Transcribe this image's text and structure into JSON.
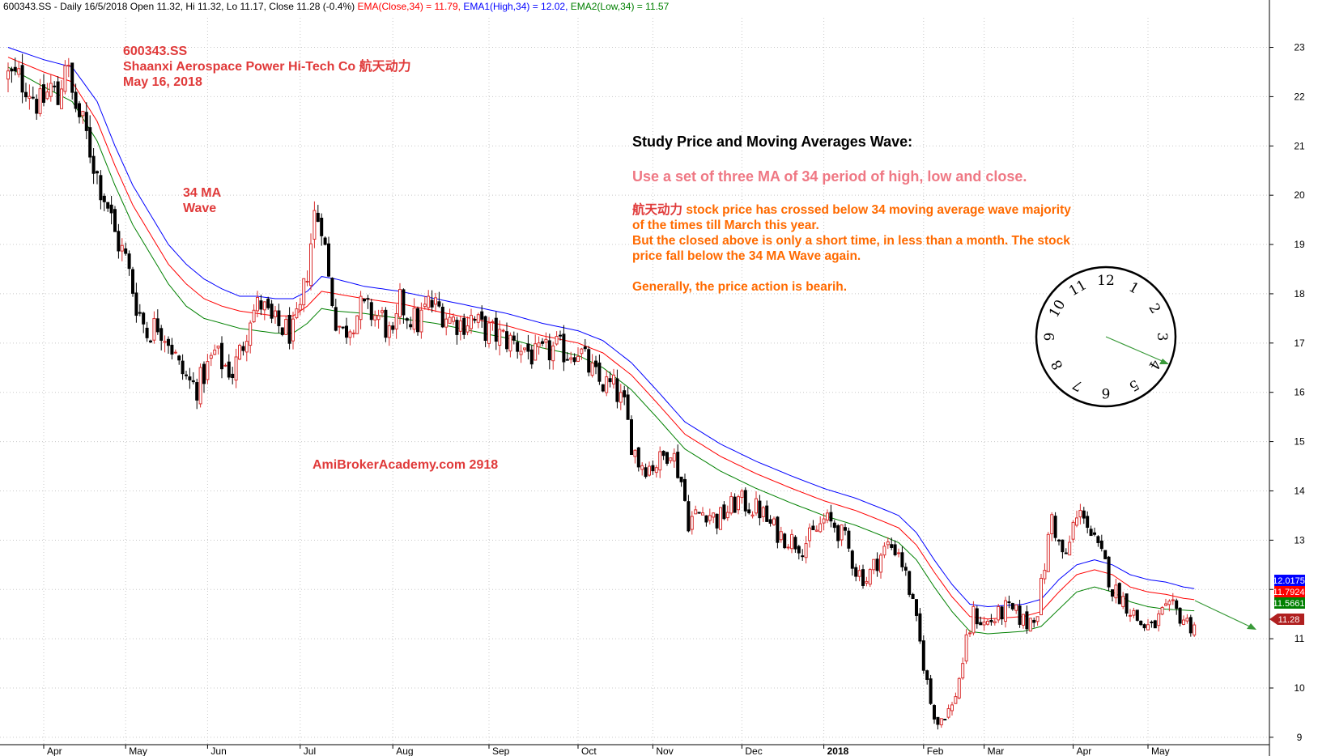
{
  "header": {
    "symbol": "600343.SS",
    "interval": "Daily 16/5/2018",
    "open": "Open 11.32,",
    "high": "Hi 11.32,",
    "low": "Lo 11.17,",
    "close": "Close 11.28 (-0.4%)",
    "ema_close": "EMA(Close,34) = 11.79,",
    "ema_high": "EMA1(High,34) = 12.02,",
    "ema_low": "EMA2(Low,34) = 11.57"
  },
  "annotations": {
    "ticker": "600343.SS",
    "company": "Shaanxi Aerospace Power Hi-Tech Co  航天动力",
    "date": "May 16, 2018",
    "wave_label_1": "34 MA",
    "wave_label_2": "Wave",
    "website": "AmiBrokerAcademy.com   2918",
    "study_title": "Study Price and Moving Averages Wave:",
    "study_subtitle": "Use a set of three MA of 34 period of high, low and close.",
    "study_zh": "航天动力",
    "study_line1": " stock price has crossed below 34 moving average wave majority",
    "study_line2": "of the times till March this year.",
    "study_line3": "But the closed above is only a short time, in less than a month. The stock",
    "study_line4": "price fall below the 34 MA Wave again.",
    "study_line5": "Generally, the price action is bearih."
  },
  "chart_data": {
    "type": "candlestick",
    "ylim": [
      8.85,
      23.6
    ],
    "y_ticks": [
      9,
      10,
      11,
      12,
      13,
      14,
      15,
      16,
      17,
      18,
      19,
      20,
      21,
      22,
      23
    ],
    "x_months": [
      {
        "label": "Apr",
        "index": 10
      },
      {
        "label": "May",
        "index": 33
      },
      {
        "label": "Jun",
        "index": 56
      },
      {
        "label": "Jul",
        "index": 82
      },
      {
        "label": "Aug",
        "index": 108
      },
      {
        "label": "Sep",
        "index": 135
      },
      {
        "label": "Oct",
        "index": 160
      },
      {
        "label": "Nov",
        "index": 181
      },
      {
        "label": "Dec",
        "index": 206
      },
      {
        "label": "2018",
        "index": 229,
        "bold": true
      },
      {
        "label": "Feb",
        "index": 257
      },
      {
        "label": "Mar",
        "index": 274
      },
      {
        "label": "Apr",
        "index": 299
      },
      {
        "label": "May",
        "index": 320
      }
    ],
    "anchors": [
      [
        0,
        22.4
      ],
      [
        5,
        22.3
      ],
      [
        9,
        21.8
      ],
      [
        12,
        22.2
      ],
      [
        14,
        21.9
      ],
      [
        16,
        22.8
      ],
      [
        18,
        22.0
      ],
      [
        22,
        21.2
      ],
      [
        25,
        20.4
      ],
      [
        28,
        19.8
      ],
      [
        30,
        19.2
      ],
      [
        33,
        18.7
      ],
      [
        36,
        17.8
      ],
      [
        39,
        17.2
      ],
      [
        42,
        17.4
      ],
      [
        45,
        17.1
      ],
      [
        48,
        16.5
      ],
      [
        51,
        16.2
      ],
      [
        53,
        16.1
      ],
      [
        56,
        16.5
      ],
      [
        58,
        16.8
      ],
      [
        60,
        16.6
      ],
      [
        63,
        16.4
      ],
      [
        66,
        17.0
      ],
      [
        68,
        17.6
      ],
      [
        71,
        17.8
      ],
      [
        74,
        17.4
      ],
      [
        77,
        17.3
      ],
      [
        80,
        17.2
      ],
      [
        82,
        17.6
      ],
      [
        84,
        18.5
      ],
      [
        86,
        19.6
      ],
      [
        88,
        19.5
      ],
      [
        90,
        18.3
      ],
      [
        92,
        17.5
      ],
      [
        94,
        17.2
      ],
      [
        96,
        17.4
      ],
      [
        99,
        17.7
      ],
      [
        102,
        17.6
      ],
      [
        105,
        17.5
      ],
      [
        108,
        17.0
      ],
      [
        110,
        17.8
      ],
      [
        112,
        17.6
      ],
      [
        115,
        17.4
      ],
      [
        118,
        17.8
      ],
      [
        121,
        17.7
      ],
      [
        124,
        17.5
      ],
      [
        127,
        17.4
      ],
      [
        130,
        17.5
      ],
      [
        133,
        17.3
      ],
      [
        136,
        17.2
      ],
      [
        139,
        17.1
      ],
      [
        142,
        17.0
      ],
      [
        145,
        16.9
      ],
      [
        148,
        16.7
      ],
      [
        151,
        16.8
      ],
      [
        154,
        16.9
      ],
      [
        157,
        16.8
      ],
      [
        160,
        16.9
      ],
      [
        163,
        16.5
      ],
      [
        166,
        16.2
      ],
      [
        170,
        16.1
      ],
      [
        173,
        15.7
      ],
      [
        175,
        15.0
      ],
      [
        177,
        14.6
      ],
      [
        180,
        14.5
      ],
      [
        183,
        14.6
      ],
      [
        186,
        14.9
      ],
      [
        189,
        14.2
      ],
      [
        191,
        13.4
      ],
      [
        193,
        13.5
      ],
      [
        196,
        13.6
      ],
      [
        199,
        13.4
      ],
      [
        202,
        13.6
      ],
      [
        205,
        13.8
      ],
      [
        208,
        13.7
      ],
      [
        211,
        13.6
      ],
      [
        214,
        13.3
      ],
      [
        217,
        13.1
      ],
      [
        220,
        13.0
      ],
      [
        223,
        12.9
      ],
      [
        226,
        13.1
      ],
      [
        229,
        13.4
      ],
      [
        232,
        13.3
      ],
      [
        235,
        13.0
      ],
      [
        238,
        12.4
      ],
      [
        241,
        12.2
      ],
      [
        244,
        12.6
      ],
      [
        247,
        12.9
      ],
      [
        250,
        12.8
      ],
      [
        253,
        12.0
      ],
      [
        255,
        11.3
      ],
      [
        257,
        10.5
      ],
      [
        259,
        9.7
      ],
      [
        261,
        9.3
      ],
      [
        263,
        9.5
      ],
      [
        265,
        9.6
      ],
      [
        267,
        10.2
      ],
      [
        269,
        10.9
      ],
      [
        271,
        11.5
      ],
      [
        274,
        11.3
      ],
      [
        277,
        11.4
      ],
      [
        280,
        11.6
      ],
      [
        283,
        11.5
      ],
      [
        286,
        11.3
      ],
      [
        289,
        11.6
      ],
      [
        291,
        12.5
      ],
      [
        293,
        13.5
      ],
      [
        295,
        12.9
      ],
      [
        297,
        12.6
      ],
      [
        299,
        13.3
      ],
      [
        302,
        13.6
      ],
      [
        304,
        13.1
      ],
      [
        306,
        12.8
      ],
      [
        308,
        12.5
      ],
      [
        310,
        12.0
      ],
      [
        312,
        11.9
      ],
      [
        315,
        11.6
      ],
      [
        318,
        11.3
      ],
      [
        321,
        11.2
      ],
      [
        324,
        11.5
      ],
      [
        327,
        11.6
      ],
      [
        330,
        11.4
      ],
      [
        332,
        11.28
      ]
    ],
    "ema_high": {
      "name": "EMA1(High,34)",
      "color": "#0000ff",
      "last_value": 12.0175,
      "points": [
        [
          0,
          23.0
        ],
        [
          10,
          22.75
        ],
        [
          18,
          22.6
        ],
        [
          25,
          21.9
        ],
        [
          30,
          21.0
        ],
        [
          35,
          20.2
        ],
        [
          40,
          19.6
        ],
        [
          45,
          19.0
        ],
        [
          50,
          18.6
        ],
        [
          55,
          18.3
        ],
        [
          60,
          18.1
        ],
        [
          65,
          17.95
        ],
        [
          70,
          17.95
        ],
        [
          75,
          17.9
        ],
        [
          80,
          17.9
        ],
        [
          84,
          18.05
        ],
        [
          88,
          18.35
        ],
        [
          92,
          18.3
        ],
        [
          100,
          18.15
        ],
        [
          110,
          18.05
        ],
        [
          120,
          17.9
        ],
        [
          130,
          17.75
        ],
        [
          140,
          17.6
        ],
        [
          150,
          17.4
        ],
        [
          160,
          17.25
        ],
        [
          167,
          17.05
        ],
        [
          175,
          16.6
        ],
        [
          182,
          16.05
        ],
        [
          190,
          15.4
        ],
        [
          200,
          14.95
        ],
        [
          210,
          14.6
        ],
        [
          220,
          14.3
        ],
        [
          229,
          14.05
        ],
        [
          238,
          13.85
        ],
        [
          245,
          13.65
        ],
        [
          250,
          13.5
        ],
        [
          255,
          13.15
        ],
        [
          260,
          12.6
        ],
        [
          265,
          12.1
        ],
        [
          270,
          11.7
        ],
        [
          275,
          11.65
        ],
        [
          285,
          11.7
        ],
        [
          290,
          11.8
        ],
        [
          295,
          12.2
        ],
        [
          300,
          12.5
        ],
        [
          305,
          12.6
        ],
        [
          310,
          12.5
        ],
        [
          315,
          12.3
        ],
        [
          320,
          12.2
        ],
        [
          325,
          12.15
        ],
        [
          330,
          12.05
        ],
        [
          333,
          12.0175
        ]
      ]
    },
    "ema_close": {
      "name": "EMA(Close,34)",
      "color": "#ff0000",
      "last_value": 11.7924,
      "points": [
        [
          0,
          22.8
        ],
        [
          10,
          22.5
        ],
        [
          18,
          22.3
        ],
        [
          25,
          21.5
        ],
        [
          30,
          20.6
        ],
        [
          35,
          19.8
        ],
        [
          40,
          19.2
        ],
        [
          45,
          18.6
        ],
        [
          50,
          18.2
        ],
        [
          55,
          17.9
        ],
        [
          60,
          17.75
        ],
        [
          65,
          17.65
        ],
        [
          70,
          17.6
        ],
        [
          75,
          17.55
        ],
        [
          80,
          17.55
        ],
        [
          84,
          17.75
        ],
        [
          88,
          18.05
        ],
        [
          92,
          18.0
        ],
        [
          100,
          17.9
        ],
        [
          110,
          17.8
        ],
        [
          120,
          17.65
        ],
        [
          130,
          17.5
        ],
        [
          140,
          17.35
        ],
        [
          150,
          17.15
        ],
        [
          160,
          17.0
        ],
        [
          167,
          16.8
        ],
        [
          175,
          16.35
        ],
        [
          182,
          15.8
        ],
        [
          190,
          15.15
        ],
        [
          200,
          14.7
        ],
        [
          210,
          14.35
        ],
        [
          220,
          14.05
        ],
        [
          229,
          13.8
        ],
        [
          238,
          13.6
        ],
        [
          245,
          13.4
        ],
        [
          250,
          13.25
        ],
        [
          255,
          12.9
        ],
        [
          260,
          12.35
        ],
        [
          265,
          11.85
        ],
        [
          270,
          11.45
        ],
        [
          275,
          11.4
        ],
        [
          285,
          11.45
        ],
        [
          290,
          11.55
        ],
        [
          295,
          11.95
        ],
        [
          300,
          12.3
        ],
        [
          305,
          12.4
        ],
        [
          310,
          12.3
        ],
        [
          315,
          12.05
        ],
        [
          320,
          11.95
        ],
        [
          325,
          11.9
        ],
        [
          330,
          11.82
        ],
        [
          333,
          11.7924
        ]
      ]
    },
    "ema_low": {
      "name": "EMA2(Low,34)",
      "color": "#008000",
      "last_value": 11.5661,
      "points": [
        [
          0,
          22.6
        ],
        [
          10,
          22.2
        ],
        [
          18,
          21.9
        ],
        [
          25,
          21.1
        ],
        [
          30,
          20.2
        ],
        [
          35,
          19.4
        ],
        [
          40,
          18.8
        ],
        [
          45,
          18.2
        ],
        [
          50,
          17.75
        ],
        [
          55,
          17.5
        ],
        [
          60,
          17.4
        ],
        [
          65,
          17.3
        ],
        [
          70,
          17.25
        ],
        [
          75,
          17.2
        ],
        [
          80,
          17.2
        ],
        [
          84,
          17.4
        ],
        [
          88,
          17.7
        ],
        [
          92,
          17.65
        ],
        [
          100,
          17.6
        ],
        [
          110,
          17.5
        ],
        [
          120,
          17.4
        ],
        [
          130,
          17.25
        ],
        [
          140,
          17.1
        ],
        [
          150,
          16.9
        ],
        [
          160,
          16.75
        ],
        [
          167,
          16.5
        ],
        [
          175,
          16.05
        ],
        [
          182,
          15.5
        ],
        [
          190,
          14.85
        ],
        [
          200,
          14.4
        ],
        [
          210,
          14.05
        ],
        [
          220,
          13.75
        ],
        [
          229,
          13.5
        ],
        [
          238,
          13.3
        ],
        [
          245,
          13.1
        ],
        [
          250,
          12.95
        ],
        [
          255,
          12.6
        ],
        [
          260,
          12.05
        ],
        [
          265,
          11.55
        ],
        [
          270,
          11.15
        ],
        [
          275,
          11.1
        ],
        [
          285,
          11.15
        ],
        [
          290,
          11.25
        ],
        [
          295,
          11.6
        ],
        [
          300,
          11.95
        ],
        [
          305,
          12.05
        ],
        [
          310,
          11.95
        ],
        [
          315,
          11.75
        ],
        [
          320,
          11.65
        ],
        [
          325,
          11.6
        ],
        [
          330,
          11.58
        ],
        [
          333,
          11.5661
        ]
      ]
    },
    "last_close": 11.28,
    "value_labels": [
      "12.0175",
      "11.7924",
      "11.5661",
      "11.28"
    ],
    "value_label_colors": [
      "#0000ff",
      "#ff0000",
      "#008000",
      "#b02020"
    ],
    "colors": {
      "up": "#d92d2d",
      "down": "#000000",
      "grid": "#c8c8c8"
    }
  }
}
